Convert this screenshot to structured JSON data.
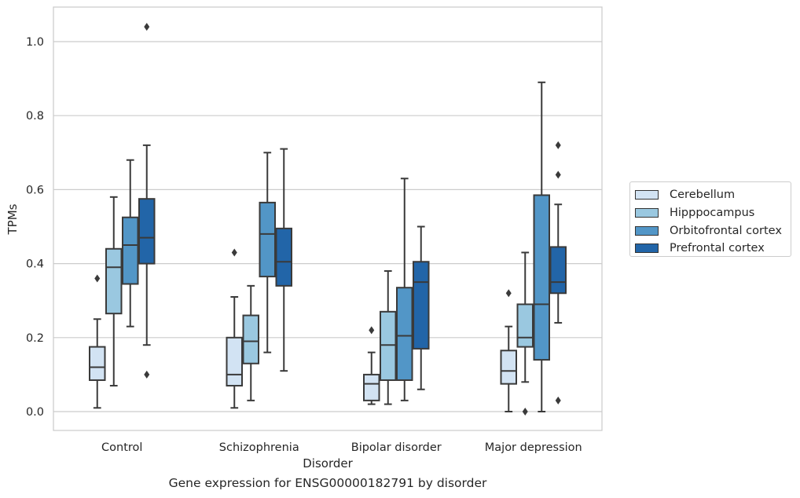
{
  "chart_data": {
    "type": "box",
    "xlabel": "Disorder",
    "ylabel": "TPMs",
    "ylim": [
      -0.05,
      1.09
    ],
    "yticks": [
      "0.0",
      "0.2",
      "0.4",
      "0.6",
      "0.8",
      "1.0"
    ],
    "ytick_values": [
      0.0,
      0.2,
      0.4,
      0.6,
      0.8,
      1.0
    ],
    "grid": "horizontal",
    "legend_position": "right",
    "categories": [
      "Control",
      "Schizophrenia",
      "Bipolar disorder",
      "Major depression"
    ],
    "series": [
      {
        "name": "Cerebellum",
        "color": "#d2e3f3",
        "boxes": [
          {
            "whisker_low": 0.01,
            "q1": 0.085,
            "median": 0.12,
            "q3": 0.175,
            "whisker_high": 0.25,
            "outliers": [
              0.36
            ]
          },
          {
            "whisker_low": 0.01,
            "q1": 0.07,
            "median": 0.1,
            "q3": 0.2,
            "whisker_high": 0.31,
            "outliers": [
              0.43
            ]
          },
          {
            "whisker_low": 0.02,
            "q1": 0.03,
            "median": 0.075,
            "q3": 0.1,
            "whisker_high": 0.16,
            "outliers": [
              0.22
            ]
          },
          {
            "whisker_low": 0.0,
            "q1": 0.075,
            "median": 0.11,
            "q3": 0.165,
            "whisker_high": 0.23,
            "outliers": [
              0.32
            ]
          }
        ]
      },
      {
        "name": "Hipppocampus",
        "color": "#9ac8e0",
        "boxes": [
          {
            "whisker_low": 0.07,
            "q1": 0.265,
            "median": 0.39,
            "q3": 0.44,
            "whisker_high": 0.58,
            "outliers": []
          },
          {
            "whisker_low": 0.03,
            "q1": 0.13,
            "median": 0.19,
            "q3": 0.26,
            "whisker_high": 0.34,
            "outliers": []
          },
          {
            "whisker_low": 0.02,
            "q1": 0.085,
            "median": 0.18,
            "q3": 0.27,
            "whisker_high": 0.38,
            "outliers": []
          },
          {
            "whisker_low": 0.08,
            "q1": 0.175,
            "median": 0.2,
            "q3": 0.29,
            "whisker_high": 0.43,
            "outliers": [
              0.0
            ]
          }
        ]
      },
      {
        "name": "Orbitofrontal cortex",
        "color": "#5296c7",
        "boxes": [
          {
            "whisker_low": 0.23,
            "q1": 0.345,
            "median": 0.45,
            "q3": 0.525,
            "whisker_high": 0.68,
            "outliers": []
          },
          {
            "whisker_low": 0.16,
            "q1": 0.365,
            "median": 0.48,
            "q3": 0.565,
            "whisker_high": 0.7,
            "outliers": []
          },
          {
            "whisker_low": 0.03,
            "q1": 0.085,
            "median": 0.205,
            "q3": 0.335,
            "whisker_high": 0.63,
            "outliers": []
          },
          {
            "whisker_low": 0.0,
            "q1": 0.14,
            "median": 0.29,
            "q3": 0.585,
            "whisker_high": 0.89,
            "outliers": []
          }
        ]
      },
      {
        "name": "Prefrontal cortex",
        "color": "#2265a8",
        "boxes": [
          {
            "whisker_low": 0.18,
            "q1": 0.4,
            "median": 0.47,
            "q3": 0.575,
            "whisker_high": 0.72,
            "outliers": [
              1.04,
              0.1
            ]
          },
          {
            "whisker_low": 0.11,
            "q1": 0.34,
            "median": 0.405,
            "q3": 0.495,
            "whisker_high": 0.71,
            "outliers": []
          },
          {
            "whisker_low": 0.06,
            "q1": 0.17,
            "median": 0.35,
            "q3": 0.405,
            "whisker_high": 0.5,
            "outliers": []
          },
          {
            "whisker_low": 0.24,
            "q1": 0.32,
            "median": 0.35,
            "q3": 0.445,
            "whisker_high": 0.56,
            "outliers": [
              0.72,
              0.64,
              0.03
            ]
          }
        ]
      }
    ],
    "caption": "Gene expression for ENSG00000182791 by disorder"
  }
}
